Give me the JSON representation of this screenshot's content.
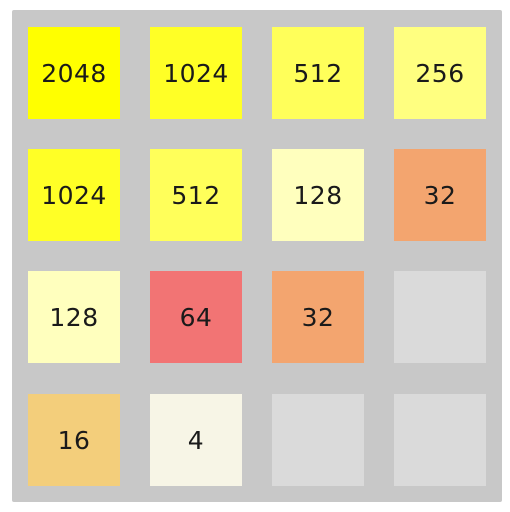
{
  "board": {
    "rows": [
      [
        {
          "value": "2048",
          "color": "#ffff00"
        },
        {
          "value": "1024",
          "color": "#ffff26"
        },
        {
          "value": "512",
          "color": "#ffff5a"
        },
        {
          "value": "256",
          "color": "#ffff80"
        }
      ],
      [
        {
          "value": "1024",
          "color": "#ffff26"
        },
        {
          "value": "512",
          "color": "#ffff5a"
        },
        {
          "value": "128",
          "color": "#ffffbe"
        },
        {
          "value": "32",
          "color": "#f3a56f"
        }
      ],
      [
        {
          "value": "128",
          "color": "#ffffbe"
        },
        {
          "value": "64",
          "color": "#f27474"
        },
        {
          "value": "32",
          "color": "#f3a56f"
        },
        {
          "value": "",
          "color": "#dadada"
        }
      ],
      [
        {
          "value": "16",
          "color": "#f3ce7b"
        },
        {
          "value": "4",
          "color": "#f7f5e6"
        },
        {
          "value": "",
          "color": "#dadada"
        },
        {
          "value": "",
          "color": "#dadada"
        }
      ]
    ]
  }
}
